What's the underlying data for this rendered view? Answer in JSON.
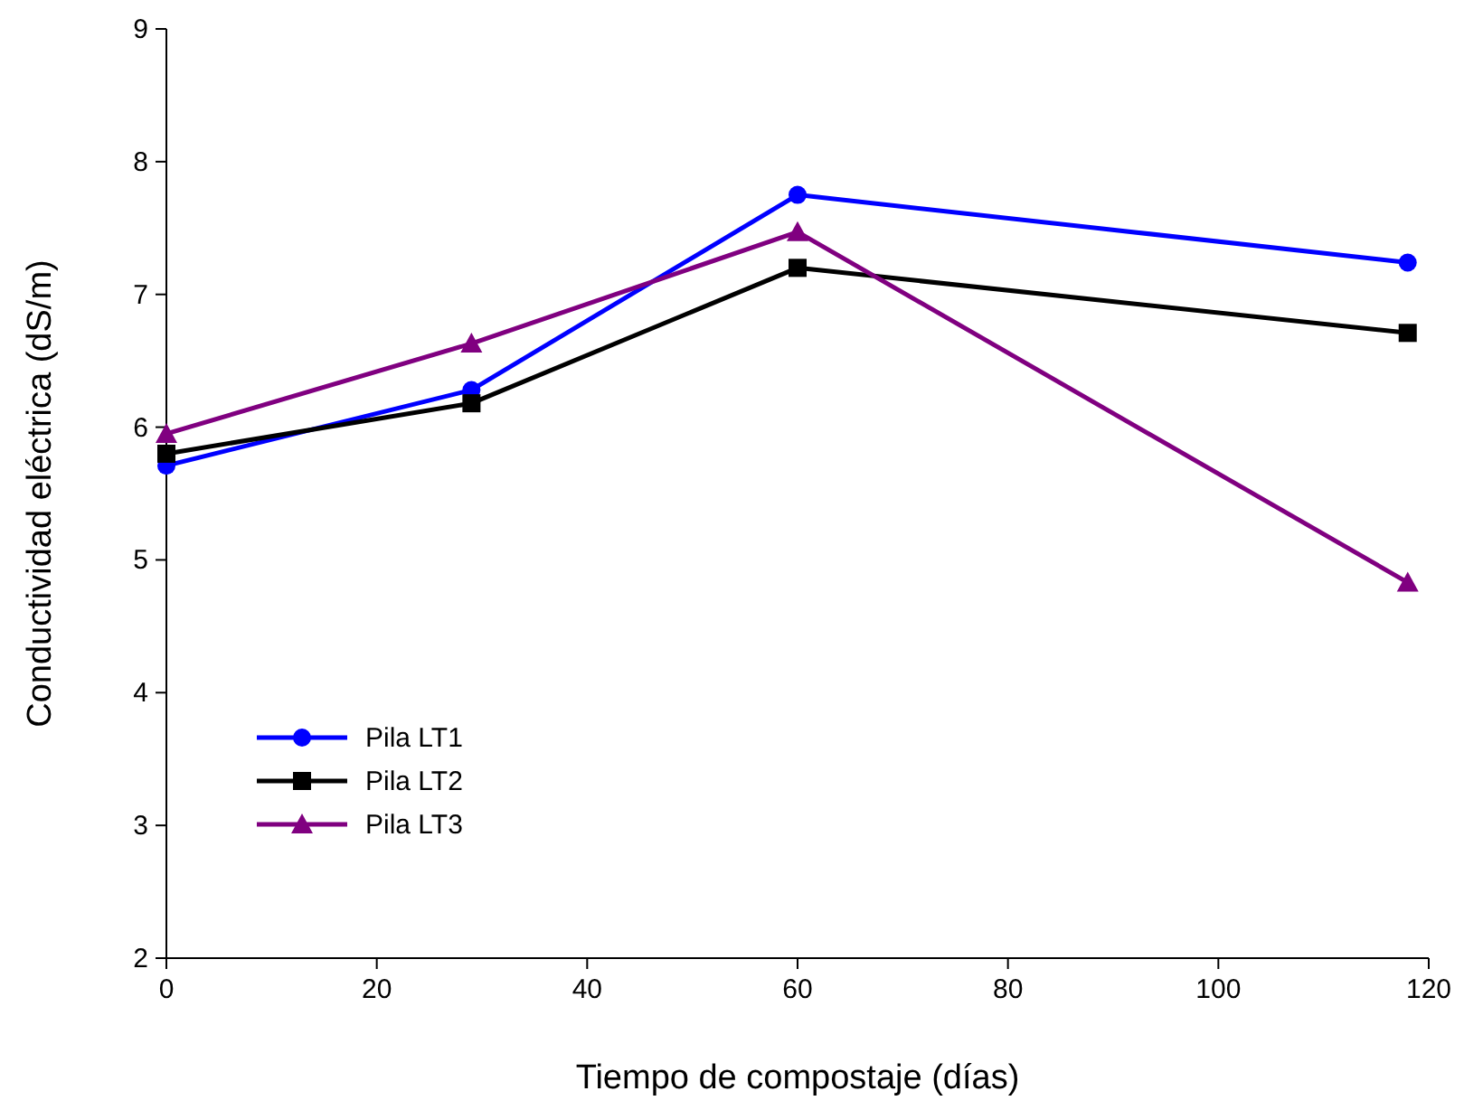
{
  "chart_data": {
    "type": "line",
    "xlabel": "Tiempo de compostaje (días)",
    "ylabel": "Conductividad eléctrica (dS/m)",
    "xlim": [
      0,
      120
    ],
    "xticks": [
      0,
      20,
      40,
      60,
      80,
      100,
      120
    ],
    "ylim": [
      2,
      9
    ],
    "yticks": [
      2,
      3,
      4,
      5,
      6,
      7,
      8,
      9
    ],
    "x": [
      0,
      29,
      60,
      118
    ],
    "grid": false,
    "legend": "bottom left",
    "line_style": "solid",
    "series": [
      {
        "name": "Pila LT1",
        "color": "#0000ff",
        "marker": "circle",
        "values": [
          5.71,
          6.28,
          7.75,
          7.24
        ]
      },
      {
        "name": "Pila LT2",
        "color": "#000000",
        "marker": "square",
        "values": [
          5.8,
          6.18,
          7.2,
          6.71
        ]
      },
      {
        "name": "Pila LT3",
        "color": "#800080",
        "marker": "triangle",
        "values": [
          5.95,
          6.63,
          7.47,
          4.83
        ]
      }
    ]
  }
}
